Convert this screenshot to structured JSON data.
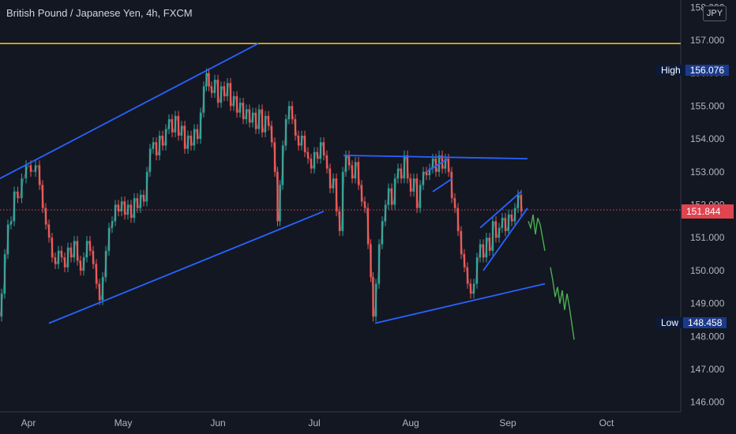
{
  "header": {
    "title": "British Pound / Japanese Yen, 4h, FXCM",
    "currency_badge": "JPY"
  },
  "chart_data": {
    "type": "line",
    "title": "British Pound / Japanese Yen, 4h, FXCM",
    "x_ticks": [
      "Apr",
      "May",
      "Jun",
      "Jul",
      "Aug",
      "Sep",
      "Oct"
    ],
    "y_ticks": [
      "158.000",
      "157.000",
      "156.000",
      "155.000",
      "154.000",
      "153.000",
      "152.000",
      "151.000",
      "150.000",
      "149.000",
      "148.000",
      "147.000",
      "146.000"
    ],
    "ylim": [
      145.9,
      158.1
    ],
    "grid": false,
    "series": [
      {
        "values": [
          [
            0,
            148.6
          ],
          [
            4,
            149.3
          ],
          [
            8,
            150.5
          ],
          [
            12,
            151.4
          ],
          [
            16,
            151.5
          ],
          [
            20,
            152.4
          ],
          [
            25,
            152.2
          ],
          [
            30,
            152.8
          ],
          [
            36,
            153.2
          ],
          [
            42,
            153.0
          ],
          [
            48,
            153.2
          ],
          [
            52,
            152.6
          ],
          [
            56,
            151.9
          ],
          [
            60,
            151.4
          ],
          [
            64,
            151.0
          ],
          [
            68,
            150.4
          ],
          [
            72,
            150.2
          ],
          [
            76,
            150.6
          ],
          [
            80,
            150.4
          ],
          [
            84,
            150.1
          ],
          [
            88,
            150.7
          ],
          [
            92,
            150.4
          ],
          [
            96,
            150.9
          ],
          [
            100,
            150.3
          ],
          [
            104,
            150.0
          ],
          [
            108,
            150.4
          ],
          [
            112,
            150.9
          ],
          [
            116,
            150.6
          ],
          [
            120,
            150.2
          ],
          [
            124,
            149.6
          ],
          [
            128,
            149.1
          ],
          [
            132,
            149.8
          ],
          [
            136,
            150.6
          ],
          [
            140,
            151.3
          ],
          [
            144,
            151.5
          ],
          [
            148,
            152.0
          ],
          [
            152,
            151.8
          ],
          [
            156,
            152.1
          ],
          [
            160,
            151.7
          ],
          [
            164,
            152.0
          ],
          [
            168,
            151.6
          ],
          [
            172,
            152.2
          ],
          [
            176,
            151.9
          ],
          [
            180,
            152.3
          ],
          [
            184,
            152.1
          ],
          [
            188,
            153.0
          ],
          [
            192,
            153.7
          ],
          [
            196,
            153.9
          ],
          [
            200,
            153.5
          ],
          [
            204,
            154.1
          ],
          [
            208,
            153.8
          ],
          [
            212,
            154.3
          ],
          [
            216,
            154.6
          ],
          [
            220,
            154.2
          ],
          [
            224,
            154.7
          ],
          [
            228,
            154.1
          ],
          [
            232,
            154.4
          ],
          [
            236,
            153.7
          ],
          [
            240,
            154.1
          ],
          [
            244,
            153.8
          ],
          [
            248,
            154.3
          ],
          [
            252,
            154.0
          ],
          [
            256,
            154.8
          ],
          [
            260,
            155.6
          ],
          [
            263,
            156.0
          ],
          [
            266,
            155.6
          ],
          [
            270,
            155.4
          ],
          [
            274,
            155.8
          ],
          [
            278,
            155.1
          ],
          [
            282,
            155.6
          ],
          [
            286,
            155.3
          ],
          [
            290,
            155.7
          ],
          [
            294,
            155.0
          ],
          [
            298,
            155.3
          ],
          [
            302,
            154.8
          ],
          [
            306,
            155.1
          ],
          [
            310,
            154.6
          ],
          [
            314,
            154.9
          ],
          [
            318,
            154.5
          ],
          [
            322,
            154.8
          ],
          [
            326,
            154.3
          ],
          [
            330,
            154.9
          ],
          [
            334,
            154.2
          ],
          [
            338,
            154.7
          ],
          [
            342,
            154.4
          ],
          [
            346,
            153.9
          ],
          [
            350,
            153.0
          ],
          [
            353,
            151.5
          ],
          [
            356,
            152.6
          ],
          [
            360,
            153.8
          ],
          [
            364,
            154.6
          ],
          [
            368,
            155.0
          ],
          [
            372,
            154.6
          ],
          [
            376,
            154.1
          ],
          [
            380,
            153.8
          ],
          [
            384,
            154.1
          ],
          [
            388,
            153.6
          ],
          [
            392,
            153.4
          ],
          [
            396,
            153.1
          ],
          [
            400,
            153.6
          ],
          [
            404,
            153.4
          ],
          [
            408,
            153.9
          ],
          [
            412,
            153.5
          ],
          [
            416,
            153.1
          ],
          [
            420,
            152.5
          ],
          [
            424,
            152.8
          ],
          [
            428,
            151.8
          ],
          [
            432,
            151.2
          ],
          [
            436,
            153.0
          ],
          [
            440,
            153.5
          ],
          [
            444,
            153.2
          ],
          [
            448,
            152.8
          ],
          [
            452,
            153.3
          ],
          [
            456,
            152.6
          ],
          [
            460,
            152.1
          ],
          [
            464,
            151.9
          ],
          [
            468,
            150.8
          ],
          [
            471,
            149.8
          ],
          [
            474,
            148.6
          ],
          [
            478,
            149.6
          ],
          [
            482,
            150.8
          ],
          [
            486,
            151.5
          ],
          [
            490,
            152.0
          ],
          [
            494,
            152.5
          ],
          [
            498,
            152.0
          ],
          [
            502,
            152.8
          ],
          [
            506,
            153.1
          ],
          [
            510,
            152.8
          ],
          [
            514,
            153.5
          ],
          [
            518,
            152.8
          ],
          [
            522,
            152.4
          ],
          [
            526,
            152.8
          ],
          [
            530,
            151.9
          ],
          [
            534,
            152.6
          ],
          [
            538,
            153.0
          ],
          [
            542,
            152.9
          ],
          [
            546,
            153.1
          ],
          [
            550,
            153.4
          ],
          [
            554,
            153.0
          ],
          [
            558,
            153.5
          ],
          [
            562,
            153.1
          ],
          [
            566,
            153.4
          ],
          [
            570,
            153.0
          ],
          [
            574,
            152.2
          ],
          [
            578,
            151.9
          ],
          [
            582,
            151.2
          ],
          [
            586,
            150.5
          ],
          [
            590,
            150.1
          ],
          [
            594,
            149.6
          ],
          [
            598,
            149.3
          ],
          [
            602,
            149.6
          ],
          [
            606,
            150.4
          ],
          [
            610,
            150.8
          ],
          [
            614,
            150.4
          ],
          [
            618,
            151.0
          ],
          [
            622,
            150.6
          ],
          [
            626,
            151.5
          ],
          [
            630,
            151.0
          ],
          [
            634,
            151.3
          ],
          [
            638,
            151.6
          ],
          [
            642,
            151.2
          ],
          [
            646,
            151.7
          ],
          [
            650,
            151.5
          ],
          [
            654,
            151.9
          ],
          [
            658,
            152.3
          ],
          [
            662,
            151.8
          ]
        ]
      },
      {
        "values": [
          [
            669,
            151.5
          ],
          [
            672,
            151.3
          ],
          [
            675,
            151.7
          ],
          [
            678,
            151.1
          ],
          [
            681,
            151.6
          ],
          [
            684,
            151.4
          ],
          [
            687,
            151.0
          ],
          [
            690,
            150.6
          ]
        ]
      },
      {
        "values": [
          [
            697,
            150.1
          ],
          [
            700,
            149.7
          ],
          [
            703,
            149.2
          ],
          [
            706,
            149.5
          ],
          [
            709,
            149.0
          ],
          [
            712,
            149.4
          ],
          [
            715,
            148.8
          ],
          [
            718,
            149.3
          ],
          [
            721,
            148.9
          ],
          [
            724,
            148.4
          ],
          [
            727,
            147.9
          ]
        ]
      }
    ],
    "trendlines": [
      {
        "color": "#2962ff",
        "points": [
          [
            0,
            152.8
          ],
          [
            327,
            156.9
          ]
        ]
      },
      {
        "color": "#2962ff",
        "points": [
          [
            62,
            148.4
          ],
          [
            410,
            151.8
          ]
        ]
      },
      {
        "color": "#2962ff",
        "points": [
          [
            435,
            153.5
          ],
          [
            668,
            153.4
          ]
        ]
      },
      {
        "color": "#2962ff",
        "points": [
          [
            475,
            148.4
          ],
          [
            690,
            149.6
          ]
        ]
      },
      {
        "color": "#2962ff",
        "points": [
          [
            540,
            153.0
          ],
          [
            567,
            153.4
          ]
        ]
      },
      {
        "color": "#2962ff",
        "points": [
          [
            548,
            152.4
          ],
          [
            573,
            152.8
          ]
        ]
      },
      {
        "color": "#2962ff",
        "points": [
          [
            608,
            151.3
          ],
          [
            660,
            152.4
          ]
        ]
      },
      {
        "color": "#2962ff",
        "points": [
          [
            612,
            150.0
          ],
          [
            668,
            151.9
          ]
        ]
      }
    ],
    "hlines": [
      {
        "y": 156.9,
        "color": "#f2b91c",
        "style": "solid"
      },
      {
        "y": 151.844,
        "color": "#e0444f",
        "style": "dotted"
      }
    ],
    "markers": [
      {
        "label": "High",
        "value": "156.076"
      },
      {
        "label": "Low",
        "value": "148.458"
      }
    ],
    "last_price": "151.844"
  },
  "colors": {
    "background": "#131722",
    "axis_text": "#b2b5be",
    "trend": "#2962ff",
    "level": "#f2b91c",
    "price": "#e0444f",
    "projection": "#4caf50",
    "candle_up": "#26a69a",
    "candle_down": "#ef5350"
  }
}
